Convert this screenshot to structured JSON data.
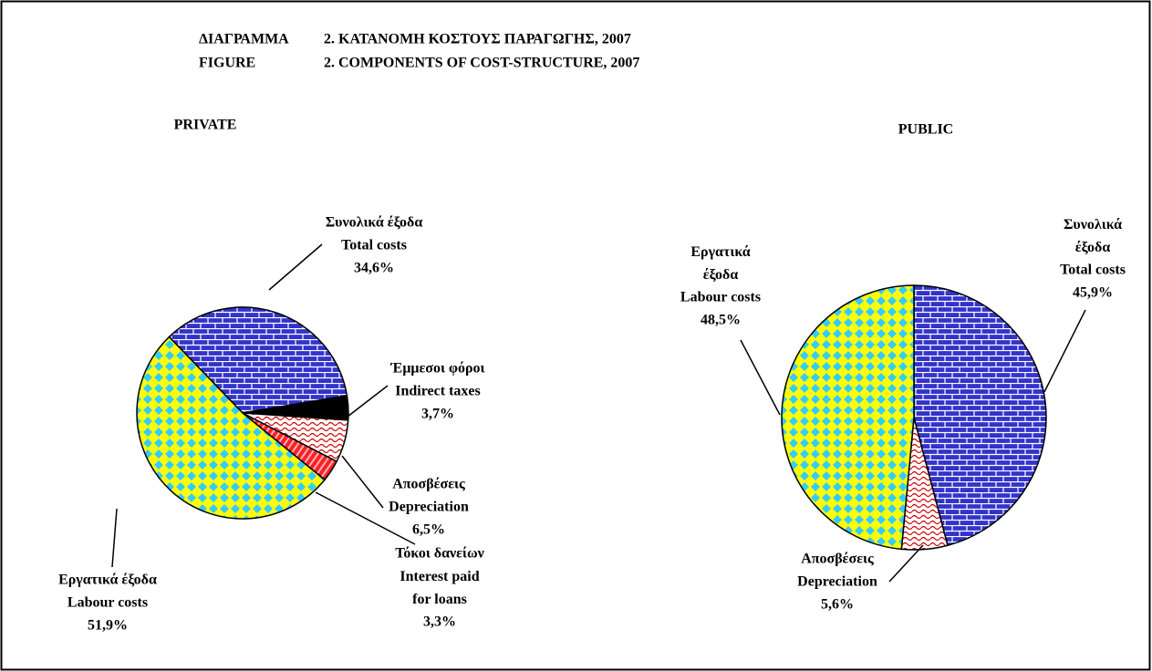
{
  "header": {
    "lines": [
      [
        "ΔΙΑΓΡΑΜΜΑ",
        "2. ΚΑΤΑΝΟΜΗ ΚΟΣΤΟΥΣ ΠΑΡΑΓΩΓΗΣ, 2007"
      ],
      [
        "FIGURE",
        "2. COMPONENTS OF COST-STRUCTURE, 2007"
      ]
    ]
  },
  "chart_data": [
    {
      "type": "pie",
      "title": "PRIVATE",
      "categories_el": [
        "Συνολικά έξοδα",
        "Έμμεσοι φόροι",
        "Αποσβέσεις",
        "Τόκοι δανείων",
        "Εργατικά έξοδα"
      ],
      "categories": [
        "Total costs",
        "Indirect taxes",
        "Depreciation",
        "Interest paid for loans",
        "Labour costs"
      ],
      "values": [
        34.6,
        3.7,
        6.5,
        3.3,
        51.9
      ],
      "value_labels": [
        "34,6%",
        "3,7%",
        "6,5%",
        "3,3%",
        "51,9%"
      ],
      "colors": [
        "#3333cc",
        "#000000",
        "#ffffff",
        "#ff2020",
        "#ffff00"
      ]
    },
    {
      "type": "pie",
      "title": "PUBLIC",
      "categories_el": [
        "Συνολικά έξοδα",
        "Αποσβέσεις",
        "Εργατικά έξοδα"
      ],
      "categories": [
        "Total costs",
        "Depreciation",
        "Labour costs"
      ],
      "values": [
        45.9,
        5.6,
        48.5
      ],
      "value_labels": [
        "45,9%",
        "5,6%",
        "48,5%"
      ],
      "colors": [
        "#3333cc",
        "#ffffff",
        "#ffff00"
      ]
    }
  ]
}
